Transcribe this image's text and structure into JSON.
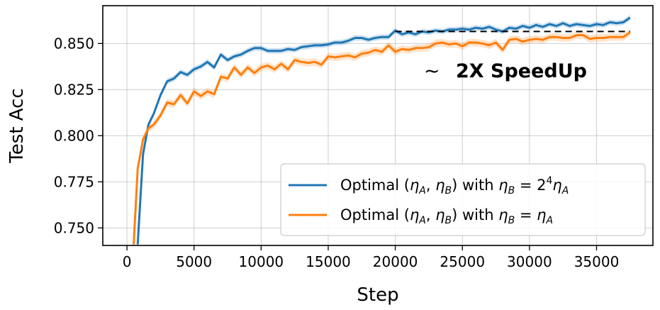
{
  "chart_data": {
    "type": "line",
    "xlabel": "Step",
    "ylabel": "Test Acc",
    "xlim": [
      -1800,
      39200
    ],
    "ylim": [
      0.7405,
      0.8705
    ],
    "xticks": [
      0,
      5000,
      10000,
      15000,
      20000,
      25000,
      30000,
      35000
    ],
    "xtick_labels": [
      "0",
      "5000",
      "10000",
      "15000",
      "20000",
      "25000",
      "30000",
      "35000"
    ],
    "yticks": [
      0.75,
      0.775,
      0.8,
      0.825,
      0.85
    ],
    "ytick_labels": [
      "0.750",
      "0.775",
      "0.800",
      "0.825",
      "0.850"
    ],
    "grid": true,
    "legend_position": "lower-right",
    "annotation": {
      "tilde": "~",
      "text": "2X SpeedUp",
      "reference_y": 0.8565,
      "reference_x_range": [
        20000,
        37500
      ]
    },
    "series": [
      {
        "name": "Optimal (ηA, ηB) with ηB = 2^4 ηA",
        "color": "#1f77b4",
        "x": [
          800,
          1200,
          1600,
          2000,
          2500,
          3000,
          3500,
          4000,
          4500,
          5000,
          5500,
          6000,
          6500,
          7000,
          7500,
          8000,
          8500,
          9000,
          9500,
          10000,
          10500,
          11000,
          11500,
          12000,
          12500,
          13000,
          13500,
          14000,
          14500,
          15000,
          15500,
          16000,
          16500,
          17000,
          17500,
          18000,
          18500,
          19000,
          19500,
          20000,
          20500,
          21000,
          21500,
          22000,
          22500,
          23000,
          23500,
          24000,
          24500,
          25000,
          25500,
          26000,
          26500,
          27000,
          27500,
          28000,
          28500,
          29000,
          29500,
          30000,
          30500,
          31000,
          31500,
          32000,
          32500,
          33000,
          33500,
          34000,
          34500,
          35000,
          35500,
          36000,
          36500,
          37000,
          37500
        ],
        "y": [
          0.741,
          0.79,
          0.806,
          0.812,
          0.822,
          0.8295,
          0.831,
          0.8345,
          0.833,
          0.836,
          0.8375,
          0.84,
          0.837,
          0.844,
          0.841,
          0.843,
          0.844,
          0.846,
          0.8475,
          0.8475,
          0.846,
          0.846,
          0.846,
          0.847,
          0.8465,
          0.848,
          0.8485,
          0.849,
          0.849,
          0.8495,
          0.8505,
          0.8505,
          0.8515,
          0.853,
          0.853,
          0.852,
          0.853,
          0.8535,
          0.8535,
          0.857,
          0.855,
          0.856,
          0.855,
          0.8565,
          0.856,
          0.857,
          0.8565,
          0.8575,
          0.8575,
          0.858,
          0.8575,
          0.8585,
          0.858,
          0.859,
          0.8575,
          0.8565,
          0.8585,
          0.858,
          0.8595,
          0.8585,
          0.86,
          0.859,
          0.8605,
          0.8595,
          0.861,
          0.8595,
          0.8605,
          0.86,
          0.8595,
          0.8605,
          0.86,
          0.8615,
          0.861,
          0.8615,
          0.864
        ],
        "band": 0.0015
      },
      {
        "name": "Optimal (ηA, ηB) with ηB = ηA",
        "color": "#ff7f0e",
        "x": [
          500,
          800,
          1200,
          1600,
          2000,
          2500,
          3000,
          3500,
          4000,
          4500,
          5000,
          5500,
          6000,
          6500,
          7000,
          7500,
          8000,
          8500,
          9000,
          9500,
          10000,
          10500,
          11000,
          11500,
          12000,
          12500,
          13000,
          13500,
          14000,
          14500,
          15000,
          15500,
          16000,
          16500,
          17000,
          17500,
          18000,
          18500,
          19000,
          19500,
          20000,
          20500,
          21000,
          21500,
          22000,
          22500,
          23000,
          23500,
          24000,
          24500,
          25000,
          25500,
          26000,
          26500,
          27000,
          27500,
          28000,
          28500,
          29000,
          29500,
          30000,
          30500,
          31000,
          31500,
          32000,
          32500,
          33000,
          33500,
          34000,
          34500,
          35000,
          35500,
          36000,
          36500,
          37000,
          37500
        ],
        "y": [
          0.741,
          0.782,
          0.798,
          0.804,
          0.806,
          0.811,
          0.818,
          0.817,
          0.822,
          0.8175,
          0.824,
          0.8215,
          0.824,
          0.8225,
          0.832,
          0.831,
          0.837,
          0.833,
          0.837,
          0.834,
          0.837,
          0.838,
          0.836,
          0.839,
          0.836,
          0.841,
          0.84,
          0.8395,
          0.84,
          0.8385,
          0.843,
          0.8425,
          0.843,
          0.8435,
          0.8425,
          0.8445,
          0.845,
          0.8465,
          0.8455,
          0.849,
          0.8455,
          0.847,
          0.8465,
          0.8475,
          0.8475,
          0.848,
          0.85,
          0.8505,
          0.8495,
          0.85,
          0.8485,
          0.8505,
          0.8505,
          0.85,
          0.849,
          0.8505,
          0.8465,
          0.852,
          0.8525,
          0.851,
          0.852,
          0.8525,
          0.852,
          0.8535,
          0.8535,
          0.853,
          0.853,
          0.8545,
          0.8545,
          0.8525,
          0.853,
          0.853,
          0.8535,
          0.8535,
          0.8535,
          0.856
        ],
        "band": 0.002
      }
    ]
  }
}
